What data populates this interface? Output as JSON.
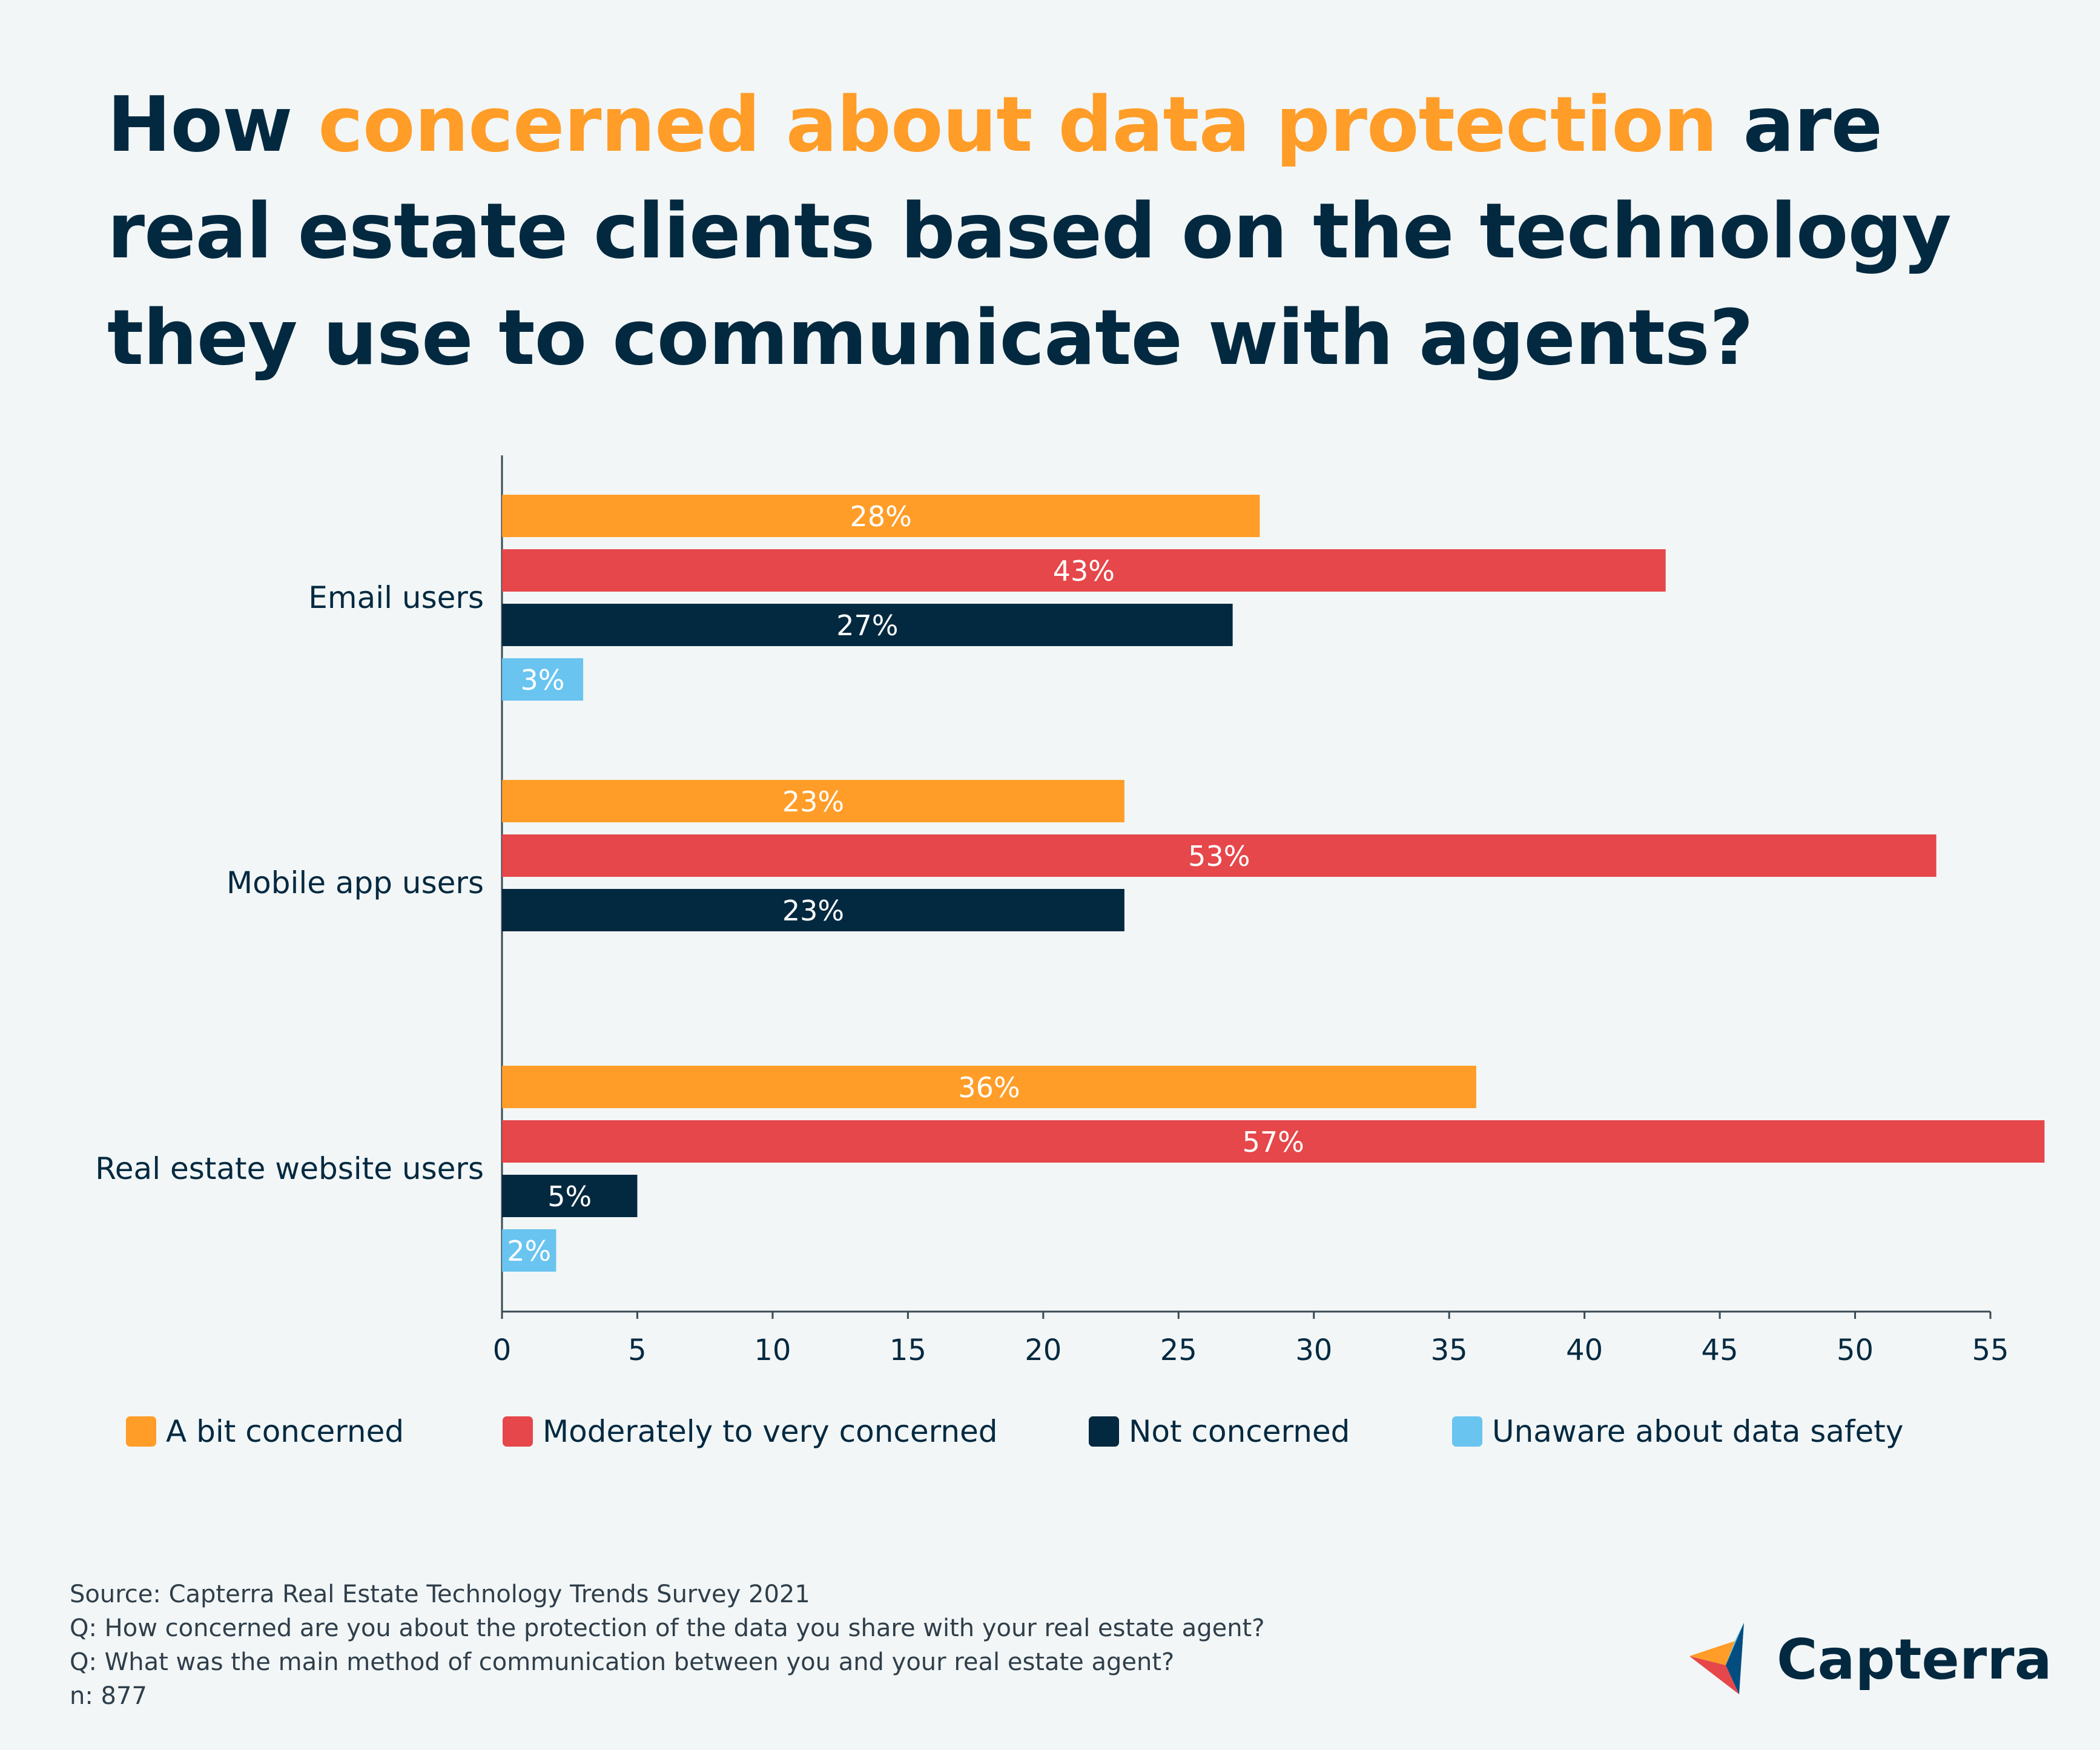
{
  "title": {
    "pre": "How ",
    "highlight": "concerned about data protection",
    "post": " are real estate clients based on the technology they use to communicate with agents?"
  },
  "colors": {
    "a_bit": "#ff9d28",
    "moderate": "#e5474a",
    "not": "#032940",
    "unaware": "#69c4f0",
    "title_highlight": "#ff9d28",
    "text": "#032940"
  },
  "chart_data": {
    "type": "bar",
    "orientation": "horizontal",
    "title": "How concerned about data protection are real estate clients based on the technology they use to communicate with agents?",
    "categories": [
      "Email users",
      "Mobile app users",
      "Real estate website users"
    ],
    "series": [
      {
        "name": "A bit concerned",
        "color": "#ff9d28",
        "values": [
          28,
          23,
          36
        ],
        "labels": [
          "28%",
          "23%",
          "36%"
        ]
      },
      {
        "name": "Moderately to very concerned",
        "color": "#e5474a",
        "values": [
          43,
          53,
          57
        ],
        "labels": [
          "43%",
          "53%",
          "57%"
        ]
      },
      {
        "name": "Not concerned",
        "color": "#032940",
        "values": [
          27,
          23,
          5
        ],
        "labels": [
          "27%",
          "23%",
          "5%"
        ]
      },
      {
        "name": "Unaware about data safety",
        "color": "#69c4f0",
        "values": [
          3,
          null,
          2
        ],
        "labels": [
          "3%",
          null,
          "2%"
        ]
      }
    ],
    "xlim": [
      0,
      55
    ],
    "xticks": [
      0,
      5,
      10,
      15,
      20,
      25,
      30,
      35,
      40,
      45,
      50,
      55
    ],
    "xlabel": "",
    "ylabel": "",
    "legend": "bottom",
    "grid": false
  },
  "footer": {
    "source": "Source: Capterra Real Estate Technology Trends Survey 2021",
    "q1": "Q: How concerned are you about the protection of the data you share with your real estate agent?",
    "q2": "Q: What was the main method of communication between you and your real estate agent?",
    "n": "n: 877"
  },
  "brand": {
    "name": "Capterra",
    "icon": "capterra-logo-icon"
  }
}
